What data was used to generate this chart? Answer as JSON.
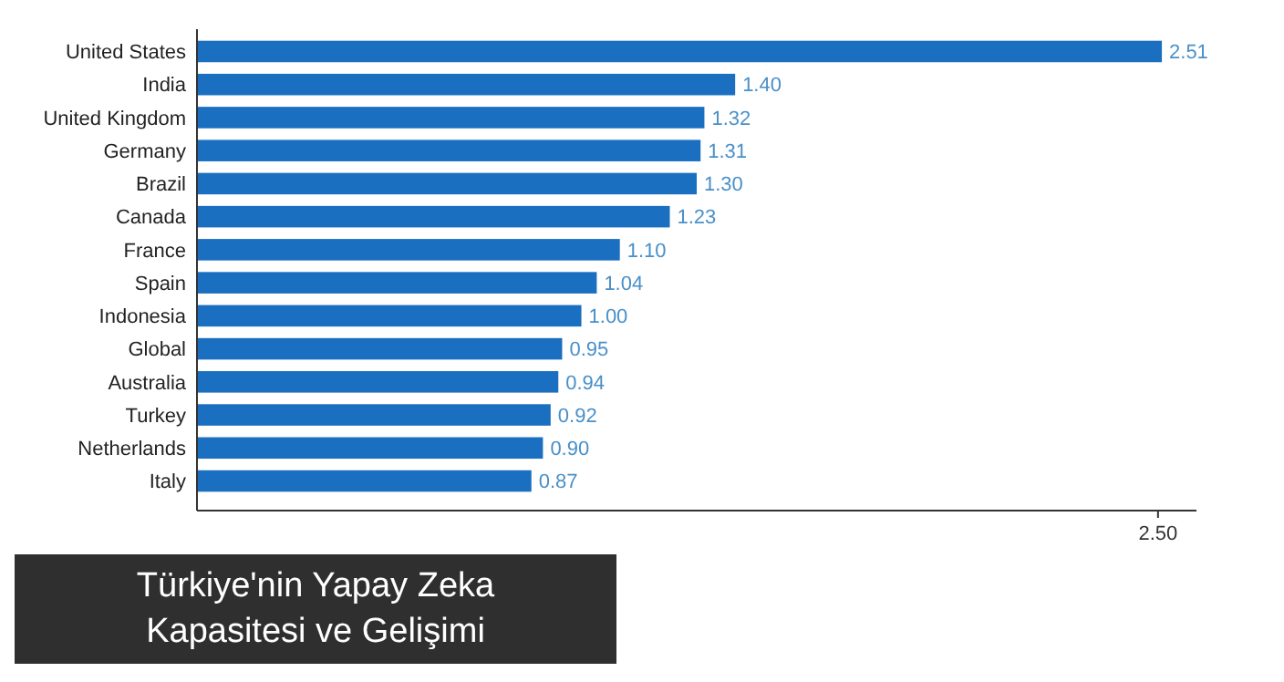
{
  "chart_data": {
    "type": "bar",
    "orientation": "horizontal",
    "title": "Türkiye'nin Yapay Zeka Kapasitesi ve Gelişimi",
    "categories": [
      "United States",
      "India",
      "United Kingdom",
      "Germany",
      "Brazil",
      "Canada",
      "France",
      "Spain",
      "Indonesia",
      "Global",
      "Australia",
      "Turkey",
      "Netherlands",
      "Italy"
    ],
    "values": [
      2.51,
      1.4,
      1.32,
      1.31,
      1.3,
      1.23,
      1.1,
      1.04,
      1.0,
      0.95,
      0.94,
      0.92,
      0.9,
      0.87
    ],
    "value_labels": [
      "2.51",
      "1.40",
      "1.32",
      "1.31",
      "1.30",
      "1.23",
      "1.10",
      "1.04",
      "1.00",
      "0.95",
      "0.94",
      "0.92",
      "0.90",
      "0.87"
    ],
    "color": "#1a6fc0",
    "xlim": [
      0,
      2.6
    ],
    "xticks": [
      {
        "value": 2.5,
        "label": "2.50"
      }
    ],
    "grid": false
  }
}
